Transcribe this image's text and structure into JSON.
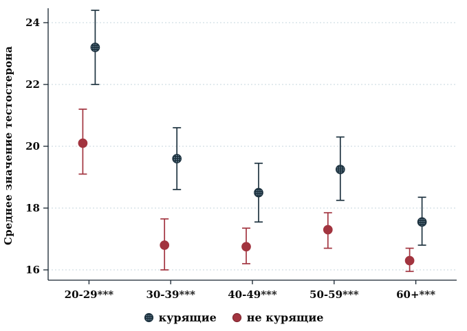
{
  "chart_data": {
    "type": "scatter",
    "subtype": "point-estimates-with-confidence-intervals",
    "title": "",
    "xlabel": "",
    "ylabel": "Среднее значение тестостерона",
    "categories": [
      "20-29***",
      "30-39***",
      "40-49***",
      "50-59***",
      "60+***"
    ],
    "yticks": [
      16,
      18,
      20,
      22,
      24
    ],
    "ylim": [
      15.6,
      24.5
    ],
    "grid": "horizontal-dashed",
    "legend_position": "bottom",
    "series": [
      {
        "name": "курящие",
        "color": "#1e3340",
        "marker_style": "hatched",
        "offset": 9,
        "values": [
          23.2,
          19.6,
          18.5,
          19.25,
          17.55
        ],
        "ci_low": [
          22.0,
          18.6,
          17.55,
          18.25,
          16.8
        ],
        "ci_high": [
          24.4,
          20.6,
          19.45,
          20.3,
          18.35
        ]
      },
      {
        "name": "не курящие",
        "color": "#a2343f",
        "marker_style": "solid",
        "offset": -9,
        "values": [
          20.1,
          16.8,
          16.75,
          17.3,
          16.3
        ],
        "ci_low": [
          19.1,
          16.0,
          16.2,
          16.7,
          15.95
        ],
        "ci_high": [
          21.2,
          17.65,
          17.35,
          17.85,
          16.7
        ]
      }
    ],
    "colors": {
      "grid": "#c6d4dd",
      "axis": "#15222e",
      "text": "#0a0a0a",
      "background": "#ffffff"
    }
  }
}
